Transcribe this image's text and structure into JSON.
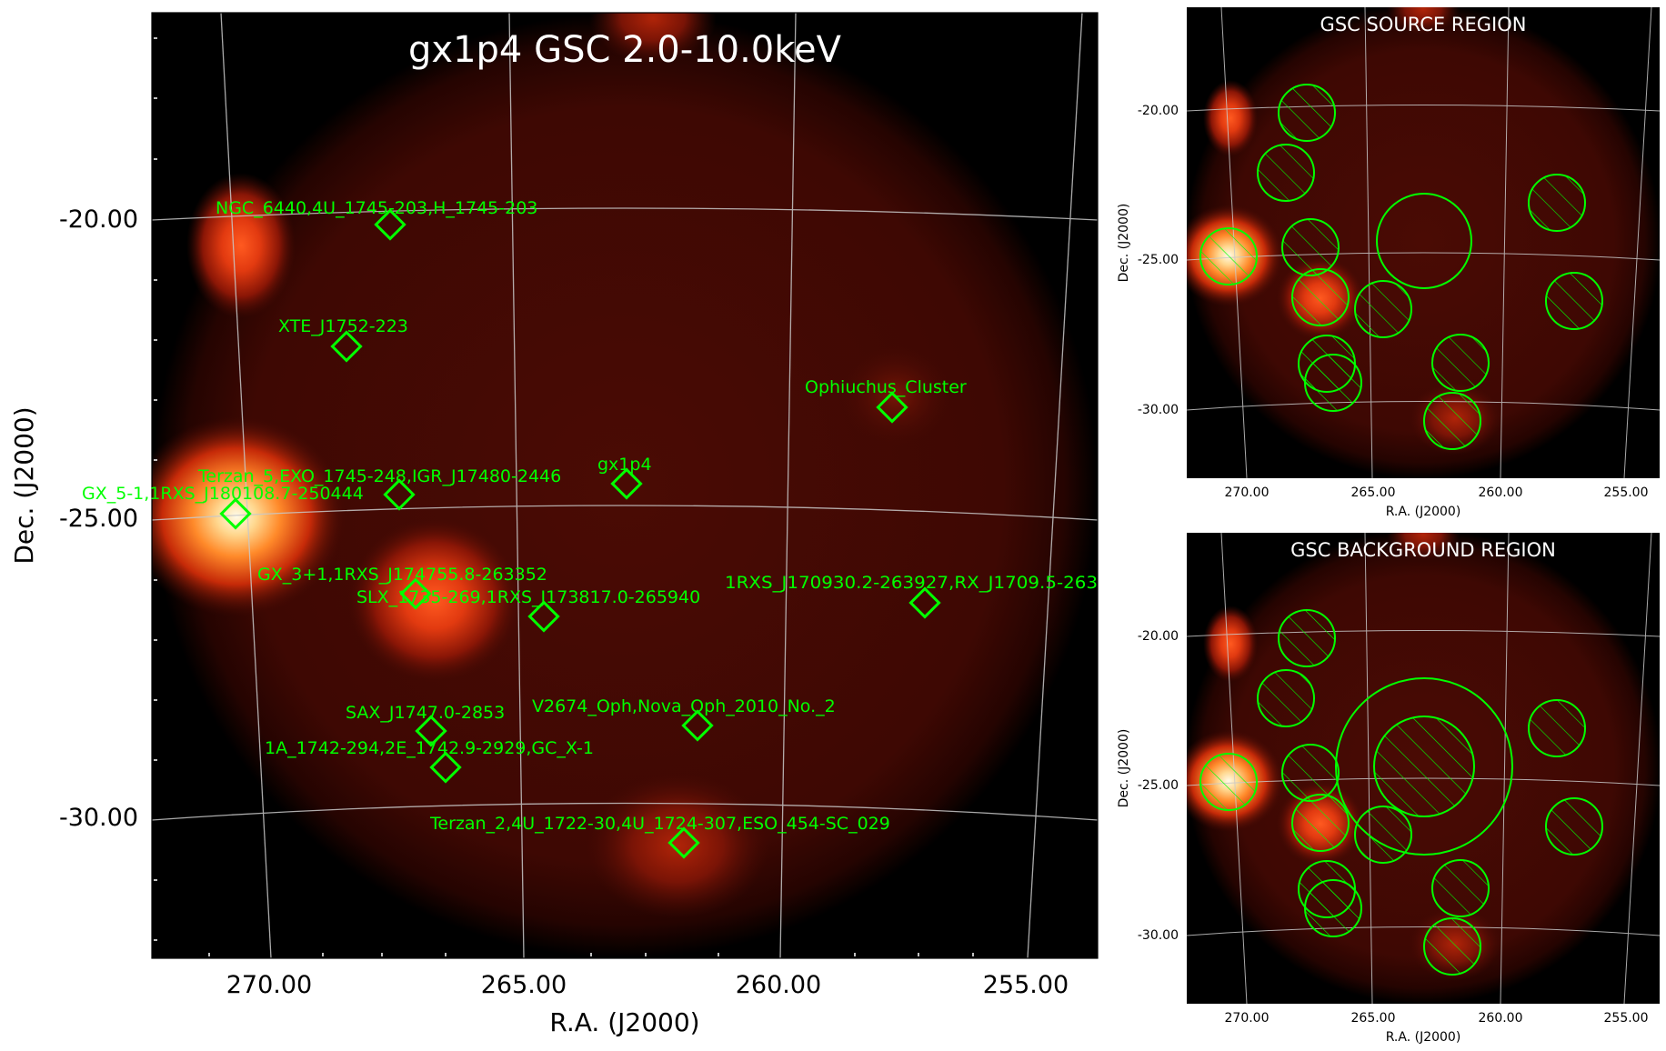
{
  "main_panel": {
    "title": "gx1p4 GSC 2.0-10.0keV",
    "xlabel": "R.A. (J2000)",
    "ylabel": "Dec. (J2000)",
    "x_ticks": [
      "270.00",
      "265.00",
      "260.00",
      "255.00"
    ],
    "y_ticks": [
      "-20.00",
      "-25.00",
      "-30.00"
    ],
    "sources": [
      {
        "label": "NGC_6440,4U_1745-203,H_1745-203"
      },
      {
        "label": "XTE_J1752-223"
      },
      {
        "label": "Ophiuchus_Cluster"
      },
      {
        "label": "Terzan_5,EXO_1745-248,IGR_J17480-2446"
      },
      {
        "label": "gx1p4"
      },
      {
        "label": "GX_5-1,1RXS_J180108.7-250444"
      },
      {
        "label": "GX_3+1,1RXS_J174755.8-263352"
      },
      {
        "label": "SLX_1735-269,1RXS_J173817.0-265940"
      },
      {
        "label": "1RXS_J170930.2-263927,RX_J1709.5-263"
      },
      {
        "label": "SAX_J1747.0-2853"
      },
      {
        "label": "V2674_Oph,Nova_Oph_2010_No._2"
      },
      {
        "label": "1A_1742-294,2E_1742.9-2929,GC_X-1"
      },
      {
        "label": "Terzan_2,4U_1722-30,4U_1724-307,ESO_454-SC_029"
      }
    ]
  },
  "source_panel": {
    "title": "GSC SOURCE REGION",
    "xlabel": "R.A. (J2000)",
    "ylabel": "Dec. (J2000)",
    "x_ticks": [
      "270.00",
      "265.00",
      "260.00",
      "255.00"
    ],
    "y_ticks": [
      "-20.00",
      "-25.00",
      "-30.00"
    ]
  },
  "background_panel": {
    "title": "GSC BACKGROUND REGION",
    "xlabel": "R.A. (J2000)",
    "ylabel": "Dec. (J2000)",
    "x_ticks": [
      "270.00",
      "265.00",
      "260.00",
      "255.00"
    ],
    "y_ticks": [
      "-20.00",
      "-25.00",
      "-30.00"
    ]
  },
  "colors": {
    "marker": "#00ff00",
    "grid": "#c8c8c8",
    "background": "#000000",
    "glow": "#ff6a1a"
  }
}
